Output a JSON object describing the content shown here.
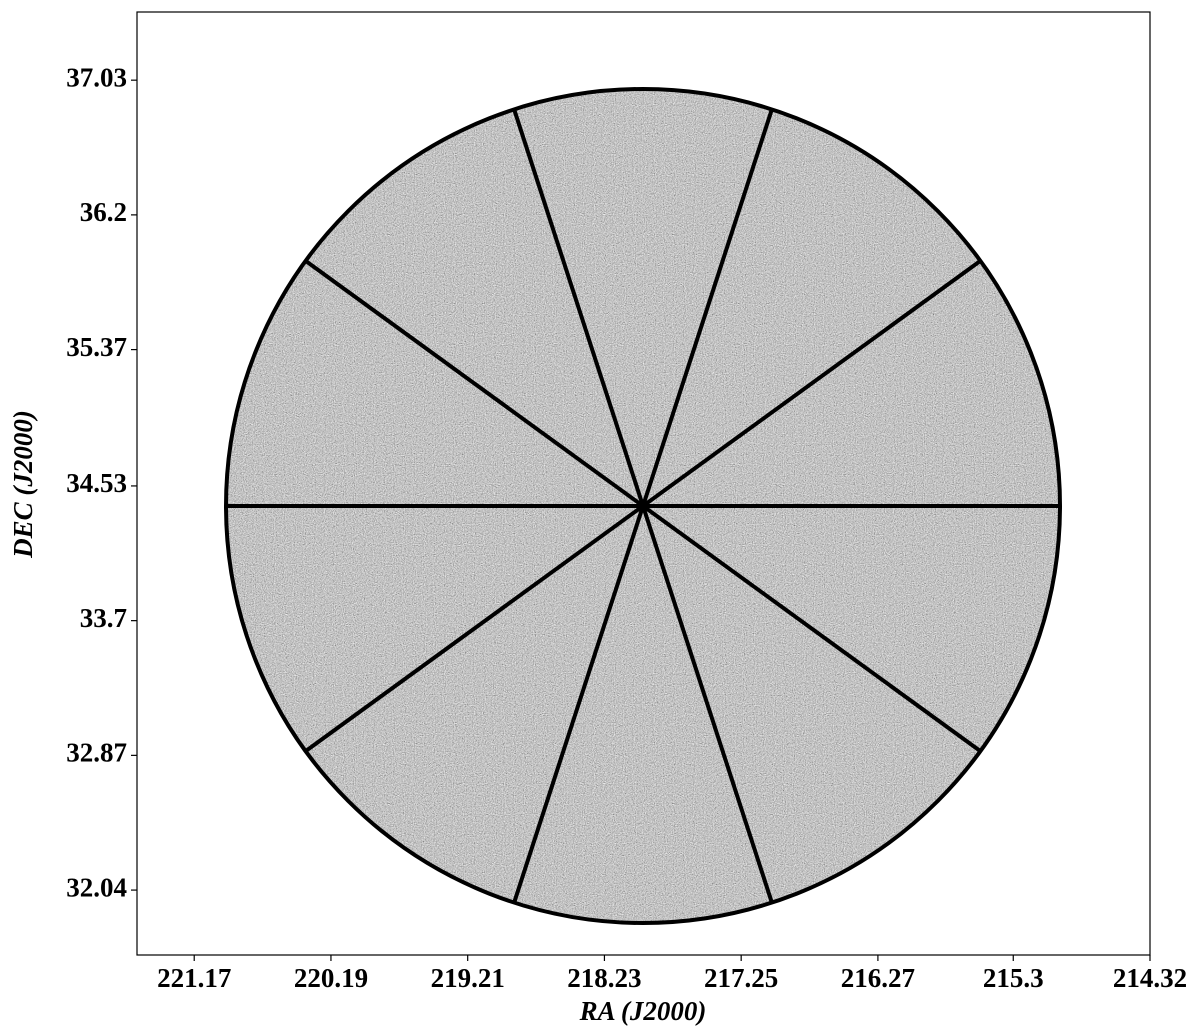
{
  "chart_data": {
    "type": "image",
    "xlabel": "RA (J2000)",
    "ylabel": "DEC (J2000)",
    "xlim": [
      221.58,
      214.32
    ],
    "xticks": [
      221.17,
      220.19,
      219.21,
      218.23,
      217.25,
      216.27,
      215.3,
      214.32
    ],
    "ylim": [
      31.64,
      37.45
    ],
    "yticks": [
      32.04,
      32.87,
      33.7,
      34.53,
      35.37,
      36.2,
      37.03
    ]
  }
}
